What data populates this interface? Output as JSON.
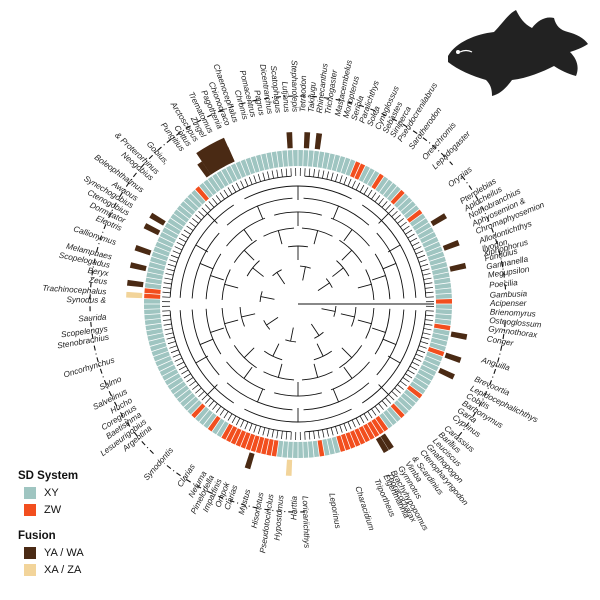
{
  "legend": {
    "sd_title": "SD System",
    "sd_items": [
      {
        "label": "XY",
        "color": "#9fc5c1"
      },
      {
        "label": "ZW",
        "color": "#f24e1e"
      }
    ],
    "fusion_title": "Fusion",
    "fusion_items": [
      {
        "label": "YA / WA",
        "color": "#4a2a14"
      },
      {
        "label": "XA / ZA",
        "color": "#f2d49a"
      }
    ]
  },
  "colors": {
    "tree": "#111111",
    "arc": "#111111"
  },
  "silhouette_icon": "fish-silhouette-icon",
  "clades": [
    {
      "name": "Acipenser",
      "ang": 0,
      "sd": "XY",
      "fusion": ""
    },
    {
      "name": "Brienomyrus",
      "ang": 2.5,
      "sd": "XY",
      "fusion": ""
    },
    {
      "name": "Osteoglossum",
      "ang": 5,
      "sd": "XY",
      "fusion": ""
    },
    {
      "name": "Gymnothorax",
      "ang": 7.5,
      "sd": "ZW",
      "fusion": ""
    },
    {
      "name": "Conger",
      "ang": 10.5,
      "sd": "XY",
      "fusion": "YA"
    },
    {
      "name": "Anguilla",
      "ang": 17,
      "sd": "ZW",
      "fusion": "YA"
    },
    {
      "name": "Brevoortia",
      "ang": 23,
      "sd": "XY",
      "fusion": "YA"
    },
    {
      "name": "Lepidocephalichthys",
      "ang": 26,
      "sd": "XY",
      "fusion": ""
    },
    {
      "name": "Cobitis",
      "ang": 28.5,
      "sd": "XY",
      "fusion": ""
    },
    {
      "name": "Barbonymus",
      "ang": 31,
      "sd": "XY",
      "fusion": ""
    },
    {
      "name": "Garra",
      "ang": 33.5,
      "sd": "XY",
      "fusion": ""
    },
    {
      "name": "Cyprinus",
      "ang": 36,
      "sd": "ZW",
      "fusion": ""
    },
    {
      "name": "Carassius",
      "ang": 40,
      "sd": "XY",
      "fusion": ""
    },
    {
      "name": "Barilius",
      "ang": 42.5,
      "sd": "XY",
      "fusion": ""
    },
    {
      "name": "Leuciscus",
      "ang": 45,
      "sd": "ZW",
      "fusion": ""
    },
    {
      "name": "Gnathopogon",
      "ang": 47.5,
      "sd": "XY",
      "fusion": ""
    },
    {
      "name": "Ctenopharyngodon",
      "ang": 50,
      "sd": "XY",
      "fusion": ""
    },
    {
      "name": "& Scardinius",
      "ang": 53,
      "sd": "ZW",
      "fusion": ""
    },
    {
      "name": "Vimba",
      "ang": 55.5,
      "sd": "ZW",
      "fusion": "YA"
    },
    {
      "name": "Gymnotus",
      "ang": 58,
      "sd": "ZW",
      "fusion": "YA"
    },
    {
      "name": "Brachyhypopomus",
      "ang": 60.5,
      "sd": "ZW",
      "fusion": ""
    },
    {
      "name": "Eigenmannia",
      "ang": 63,
      "sd": "ZW",
      "fusion": ""
    },
    {
      "name": "Triportheus",
      "ang": 66,
      "sd": "ZW",
      "fusion": ""
    },
    {
      "name": "Thoracocharax",
      "ang": 62,
      "sd": "ZW",
      "fusion": ""
    },
    {
      "name": "Characidium",
      "ang": 72,
      "sd": "ZW",
      "fusion": ""
    },
    {
      "name": "Leporinus",
      "ang": 80,
      "sd": "ZW",
      "fusion": ""
    },
    {
      "name": "Loricariichthys",
      "ang": 88,
      "sd": "XY",
      "fusion": ""
    },
    {
      "name": "Harttia",
      "ang": 91,
      "sd": "XY",
      "fusion": "XA"
    },
    {
      "name": "Hypostomus",
      "ang": 95,
      "sd": "XY",
      "fusion": ""
    },
    {
      "name": "Pseudotocinclus",
      "ang": 98,
      "sd": "ZW",
      "fusion": ""
    },
    {
      "name": "Hisonotus",
      "ang": 101,
      "sd": "XY",
      "fusion": ""
    },
    {
      "name": "Mystus",
      "ang": 105,
      "sd": "XY",
      "fusion": "YA"
    },
    {
      "name": "Clarias",
      "ang": 109,
      "sd": "XY",
      "fusion": ""
    },
    {
      "name": "Ompok",
      "ang": 111.5,
      "sd": "XY",
      "fusion": ""
    },
    {
      "name": "Imparfinis",
      "ang": 114,
      "sd": "ZW",
      "fusion": ""
    },
    {
      "name": "Pimelodella",
      "ang": 116.5,
      "sd": "XY",
      "fusion": ""
    },
    {
      "name": "Netuma",
      "ang": 119,
      "sd": "XY",
      "fusion": ""
    },
    {
      "name": "Clarias",
      "ang": 123,
      "sd": "ZW",
      "fusion": ""
    },
    {
      "name": "Synodontis",
      "ang": 131,
      "sd": "ZW",
      "fusion": ""
    },
    {
      "name": "Argentina",
      "ang": 140,
      "sd": "XY",
      "fusion": ""
    },
    {
      "name": "Lesueurigobius",
      "ang": 142.5,
      "sd": "XY",
      "fusion": ""
    },
    {
      "name": "Baetisthma",
      "ang": 145,
      "sd": "XY",
      "fusion": ""
    },
    {
      "name": "Coregonus",
      "ang": 147.5,
      "sd": "XY",
      "fusion": ""
    },
    {
      "name": "Hucho",
      "ang": 150,
      "sd": "XY",
      "fusion": ""
    },
    {
      "name": "Salvelinus",
      "ang": 153,
      "sd": "XY",
      "fusion": ""
    },
    {
      "name": "Salmo",
      "ang": 157,
      "sd": "XY",
      "fusion": ""
    },
    {
      "name": "Oncorhynchus",
      "ang": 163,
      "sd": "XY",
      "fusion": ""
    },
    {
      "name": "Stenobrachius",
      "ang": 170,
      "sd": "XY",
      "fusion": ""
    },
    {
      "name": "Scopelengys",
      "ang": 172.5,
      "sd": "XY",
      "fusion": ""
    },
    {
      "name": "Saurida",
      "ang": 176,
      "sd": "XY",
      "fusion": ""
    },
    {
      "name": "Synodus &",
      "ang": 181,
      "sd": "ZW",
      "fusion": "XA"
    },
    {
      "name": "Trachinocephalus",
      "ang": 183.5,
      "sd": "ZW",
      "fusion": ""
    },
    {
      "name": "Zeus",
      "ang": 186.5,
      "sd": "XY",
      "fusion": "YA"
    },
    {
      "name": "Beryx",
      "ang": 189,
      "sd": "XY",
      "fusion": ""
    },
    {
      "name": "Scopelogadus",
      "ang": 191.5,
      "sd": "XY",
      "fusion": "YA"
    },
    {
      "name": "Melamphaes",
      "ang": 194,
      "sd": "XY",
      "fusion": ""
    },
    {
      "name": "Callionymus",
      "ang": 198.5,
      "sd": "XY",
      "fusion": "YA"
    },
    {
      "name": "Eleotris",
      "ang": 203,
      "sd": "XY",
      "fusion": ""
    },
    {
      "name": "Dormitator",
      "ang": 205.5,
      "sd": "XY",
      "fusion": "YA"
    },
    {
      "name": "Ctenogobius",
      "ang": 208,
      "sd": "XY",
      "fusion": ""
    },
    {
      "name": "Synechogobius",
      "ang": 210.5,
      "sd": "XY",
      "fusion": "YA"
    },
    {
      "name": "Awaous",
      "ang": 213,
      "sd": "XY",
      "fusion": ""
    },
    {
      "name": "Boleophthalmus",
      "ang": 216,
      "sd": "XY",
      "fusion": ""
    },
    {
      "name": "Neogobius",
      "ang": 220.5,
      "sd": "XY",
      "fusion": ""
    },
    {
      "name": "& Proterorhinus",
      "ang": 223,
      "sd": "XY",
      "fusion": ""
    },
    {
      "name": "Gobius,",
      "ang": 227,
      "sd": "ZW",
      "fusion": ""
    },
    {
      "name": "Pungitius",
      "ang": 233,
      "sd": "XY",
      "fusion": "YA"
    },
    {
      "name": "Cottus",
      "ang": 235.5,
      "sd": "XY",
      "fusion": "YA"
    },
    {
      "name": "Arctoscopus",
      "ang": 238,
      "sd": "XY",
      "fusion": "YA"
    },
    {
      "name": "Zingel",
      "ang": 240.5,
      "sd": "XY",
      "fusion": "YA"
    },
    {
      "name": "Trematomus",
      "ang": 243,
      "sd": "XY",
      "fusion": "YA"
    },
    {
      "name": "Pagothenia",
      "ang": 246,
      "sd": "XY",
      "fusion": ""
    },
    {
      "name": "Chionodraco",
      "ang": 248.5,
      "sd": "XY",
      "fusion": ""
    },
    {
      "name": "Chaenocephalus",
      "ang": 251,
      "sd": "XY",
      "fusion": ""
    },
    {
      "name": "Chromis",
      "ang": 254,
      "sd": "XY",
      "fusion": ""
    },
    {
      "name": "Pomacentrus",
      "ang": 256.5,
      "sd": "XY",
      "fusion": ""
    },
    {
      "name": "Pagrus",
      "ang": 259,
      "sd": "XY",
      "fusion": ""
    },
    {
      "name": "Dicentrarchus",
      "ang": 261.5,
      "sd": "XY",
      "fusion": ""
    },
    {
      "name": "Scatophagus",
      "ang": 264,
      "sd": "XY",
      "fusion": ""
    },
    {
      "name": "Lutjanus",
      "ang": 266.5,
      "sd": "XY",
      "fusion": "YA"
    },
    {
      "name": "Stephanolepis",
      "ang": 269,
      "sd": "XY",
      "fusion": ""
    },
    {
      "name": "Tetraodon",
      "ang": 271.5,
      "sd": "XY",
      "fusion": "YA"
    },
    {
      "name": "Takifugu",
      "ang": 274,
      "sd": "XY",
      "fusion": ""
    },
    {
      "name": "Rhinecanthus",
      "ang": 276.5,
      "sd": "XY",
      "fusion": "YA"
    },
    {
      "name": "Trichogaster",
      "ang": 279,
      "sd": "XY",
      "fusion": ""
    },
    {
      "name": "Mastacembelus",
      "ang": 282,
      "sd": "XY",
      "fusion": ""
    },
    {
      "name": "Monopterus",
      "ang": 284.5,
      "sd": "XY",
      "fusion": ""
    },
    {
      "name": "Seriola",
      "ang": 287,
      "sd": "XY",
      "fusion": ""
    },
    {
      "name": "Paralichthys",
      "ang": 289.5,
      "sd": "XY",
      "fusion": ""
    },
    {
      "name": "Solea",
      "ang": 292,
      "sd": "ZW",
      "fusion": ""
    },
    {
      "name": "Cynoglossus",
      "ang": 294.5,
      "sd": "ZW",
      "fusion": ""
    },
    {
      "name": "Sebastes",
      "ang": 297,
      "sd": "XY",
      "fusion": ""
    },
    {
      "name": "Siniperca",
      "ang": 299.5,
      "sd": "XY",
      "fusion": ""
    },
    {
      "name": "Pseudocrenilabrus",
      "ang": 302,
      "sd": "ZW",
      "fusion": ""
    },
    {
      "name": "Sarotherodon",
      "ang": 306,
      "sd": "XY",
      "fusion": ""
    },
    {
      "name": "Oreochromis",
      "ang": 311,
      "sd": "ZW",
      "fusion": ""
    },
    {
      "name": "Lepadogaster",
      "ang": 315,
      "sd": "XY",
      "fusion": ""
    },
    {
      "name": "Oryzias",
      "ang": 322,
      "sd": "ZW",
      "fusion": ""
    },
    {
      "name": "Pterolebias",
      "ang": 328,
      "sd": "XY",
      "fusion": "YA"
    },
    {
      "name": "Aplocheilus",
      "ang": 330.5,
      "sd": "XY",
      "fusion": ""
    },
    {
      "name": "Nothobranchius",
      "ang": 333,
      "sd": "XY",
      "fusion": ""
    },
    {
      "name": "Aphyosemion &",
      "ang": 335.5,
      "sd": "XY",
      "fusion": ""
    },
    {
      "name": "Chromaphyosemion",
      "ang": 338,
      "sd": "XY",
      "fusion": "YA"
    },
    {
      "name": "Allodontichthys",
      "ang": 341,
      "sd": "XY",
      "fusion": ""
    },
    {
      "name": "Ilyodon",
      "ang": 343.5,
      "sd": "XY",
      "fusion": ""
    },
    {
      "name": "Fundulus",
      "ang": 346.5,
      "sd": "XY",
      "fusion": "YA"
    },
    {
      "name": "Garmanella",
      "ang": 349,
      "sd": "XY",
      "fusion": ""
    },
    {
      "name": "Megupsilon",
      "ang": 351.5,
      "sd": "XY",
      "fusion": ""
    },
    {
      "name": "Poecilia",
      "ang": 354.5,
      "sd": "XY",
      "fusion": ""
    },
    {
      "name": "Gambusia",
      "ang": 357.5,
      "sd": "ZW",
      "fusion": ""
    },
    {
      "name": "Xiphophorus",
      "ang": 345,
      "sd": "XY",
      "fusion": ""
    }
  ],
  "arcs": [
    {
      "from": -12,
      "to": -3
    },
    {
      "from": 5,
      "to": 42
    },
    {
      "from": 88,
      "to": 130
    },
    {
      "from": 134,
      "to": 176
    },
    {
      "from": 178,
      "to": 252
    },
    {
      "from": 254,
      "to": 318
    },
    {
      "from": 322,
      "to": 350
    }
  ]
}
